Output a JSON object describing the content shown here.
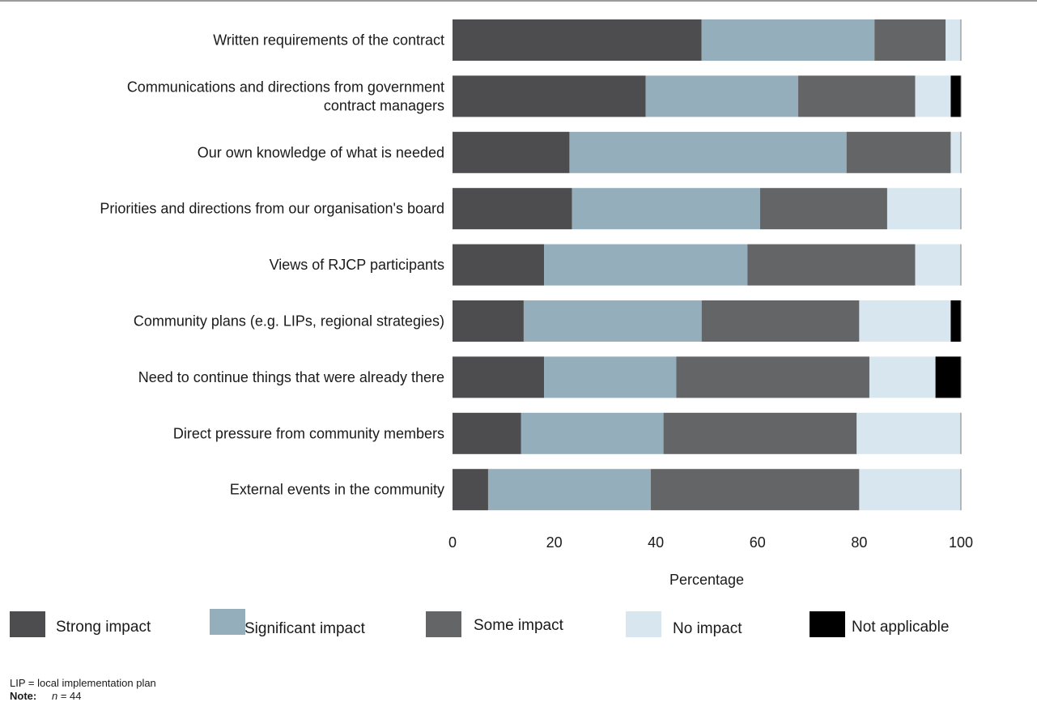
{
  "chart_data": {
    "type": "bar",
    "orientation": "horizontal",
    "stacked": true,
    "categories": [
      [
        "Written requirements of the contract"
      ],
      [
        "Communications and directions from government",
        "contract managers"
      ],
      [
        "Our own knowledge of what is needed"
      ],
      [
        "Priorities and directions from our organisation's board"
      ],
      [
        "Views of RJCP participants"
      ],
      [
        "Community plans (e.g. LIPs, regional strategies)"
      ],
      [
        "Need to continue things that were already there"
      ],
      [
        "Direct pressure from community members"
      ],
      [
        "External events in the community"
      ]
    ],
    "series": [
      {
        "name": "Strong impact",
        "color": "#4d4d4f",
        "values": [
          49,
          38,
          23,
          23.5,
          18,
          14,
          18,
          13.5,
          7
        ]
      },
      {
        "name": "Significant impact",
        "color": "#95aebb",
        "values": [
          34,
          30,
          54.5,
          37,
          40,
          35,
          26,
          28,
          32
        ]
      },
      {
        "name": "Some impact",
        "color": "#646567",
        "values": [
          14,
          23,
          20.5,
          25,
          33,
          31,
          38,
          38,
          41
        ]
      },
      {
        "name": "No impact",
        "color": "#d8e6ef",
        "values": [
          3,
          7,
          2,
          14.5,
          9,
          18,
          13,
          20.5,
          20
        ]
      },
      {
        "name": "Not applicable",
        "color": "#000000",
        "values": [
          0,
          2,
          0,
          0,
          0,
          2,
          5,
          0,
          0
        ]
      }
    ],
    "xticks": [
      "0",
      "20",
      "40",
      "60",
      "80",
      "100"
    ],
    "xlim": [
      0,
      100
    ],
    "xlabel": "Percentage",
    "ylabel": "",
    "title": "",
    "legend_position": "bottom"
  },
  "footnotes": {
    "abbreviation": "LIP = local implementation plan",
    "note_key": "Note:",
    "note_var": "n",
    "note_value": " = 44"
  }
}
